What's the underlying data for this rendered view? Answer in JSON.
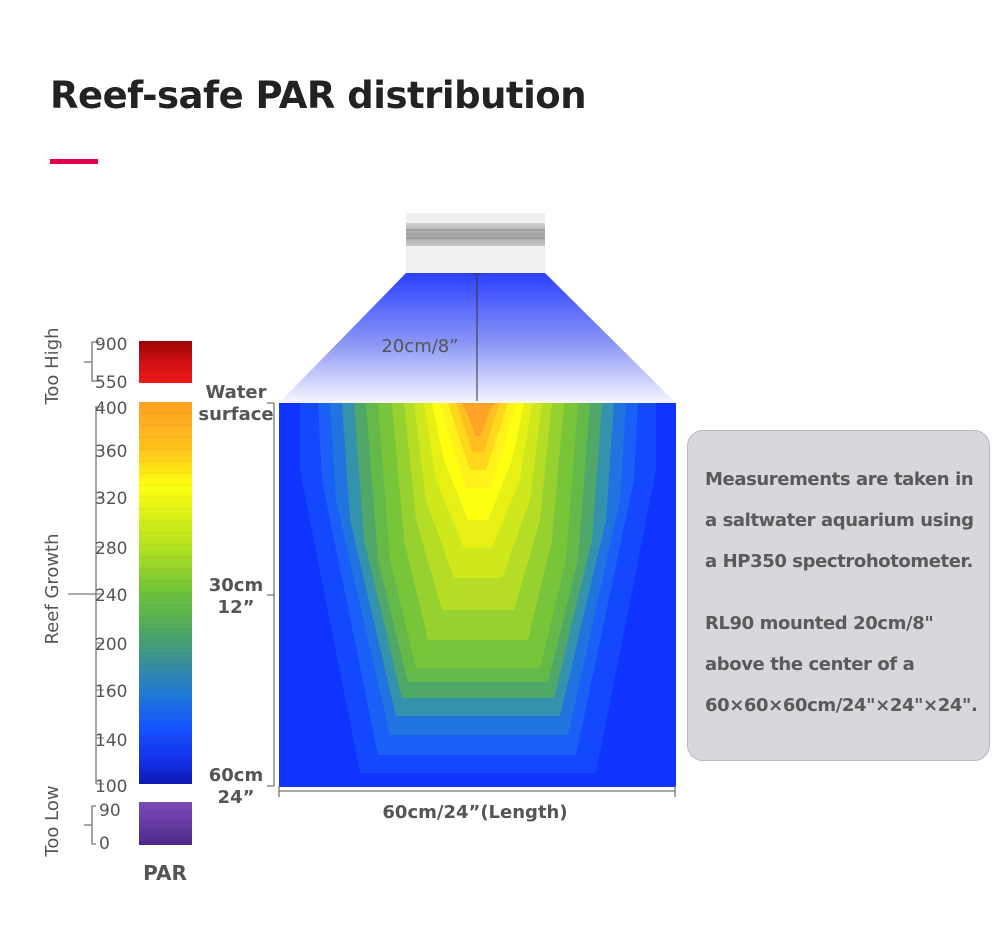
{
  "title": "Reef-safe PAR distribution",
  "colors": {
    "accent": "#e0004d",
    "water_blue": "#1e46ff",
    "too_high": "#e0101a",
    "too_low": "#6a3fa0"
  },
  "scale": {
    "unit_label": "PAR",
    "groups": {
      "too_high": "Too High",
      "reef_growth": "Reef Growth",
      "too_low": "Too Low"
    },
    "too_high_ticks": [
      "900",
      "550"
    ],
    "reef_ticks": [
      "400",
      "360",
      "320",
      "280",
      "240",
      "200",
      "160",
      "140",
      "100"
    ],
    "too_low_ticks": [
      "90",
      "0"
    ]
  },
  "diagram": {
    "light_distance": "20cm/8”",
    "water_surface": [
      "Water",
      "surface"
    ],
    "depth_mid": [
      "30cm",
      "12”"
    ],
    "depth_bottom": [
      "60cm",
      "24”"
    ],
    "length_label": "60cm/24”(Length)"
  },
  "note": {
    "paragraph1": [
      "Measurements are taken in",
      "a saltwater aquarium using",
      "a HP350 spectrohotometer."
    ],
    "paragraph2": [
      "RL90 mounted 20cm/8\"",
      "above the center of a",
      "60×60×60cm/24\"×24\"×24\"."
    ]
  }
}
